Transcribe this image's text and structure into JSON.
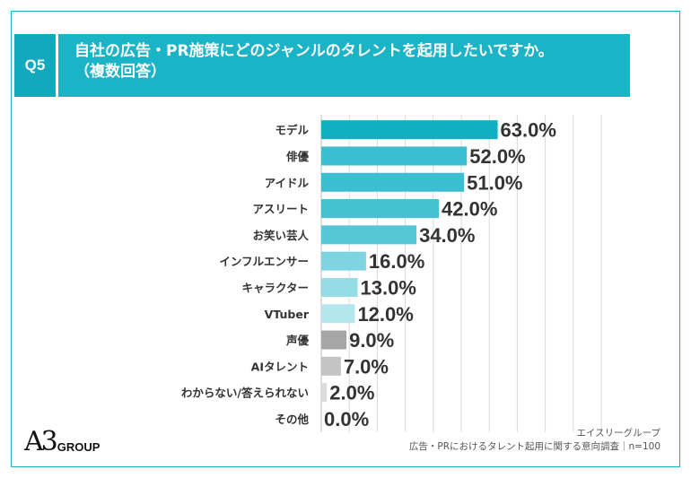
{
  "question": {
    "badge": "Q5",
    "line1": "自社の広告・PR施策にどのジャンルのタレントを起用したいですか。",
    "line2": "（複数回答）"
  },
  "chart_data": {
    "type": "bar",
    "orientation": "horizontal",
    "categories": [
      "モデル",
      "俳優",
      "アイドル",
      "アスリート",
      "お笑い芸人",
      "インフルエンサー",
      "キャラクター",
      "VTuber",
      "声優",
      "AIタレント",
      "わからない/答えられない",
      "その他"
    ],
    "values": [
      63.0,
      52.0,
      51.0,
      42.0,
      34.0,
      16.0,
      13.0,
      12.0,
      9.0,
      7.0,
      2.0,
      0.0
    ],
    "value_labels": [
      "63.0%",
      "52.0%",
      "51.0%",
      "42.0%",
      "34.0%",
      "16.0%",
      "13.0%",
      "12.0%",
      "9.0%",
      "7.0%",
      "2.0%",
      "0.0%"
    ],
    "unit": "%",
    "xlim": [
      0,
      100
    ],
    "grid": true,
    "colors": [
      "#12aec2",
      "#3bbfd0",
      "#3bbfd0",
      "#45c1d2",
      "#55c6d6",
      "#7fd4e1",
      "#95dce6",
      "#b4e6ee",
      "#a6a6a6",
      "#c4c4c4",
      "#dcdcdc",
      "#e6e6e6"
    ]
  },
  "logo": {
    "mark": "A3",
    "text": "GROUP"
  },
  "source": {
    "line1": "エイスリーグループ",
    "line2": "広告・PRにおけるタレント起用に関する意向調査｜n=100"
  }
}
